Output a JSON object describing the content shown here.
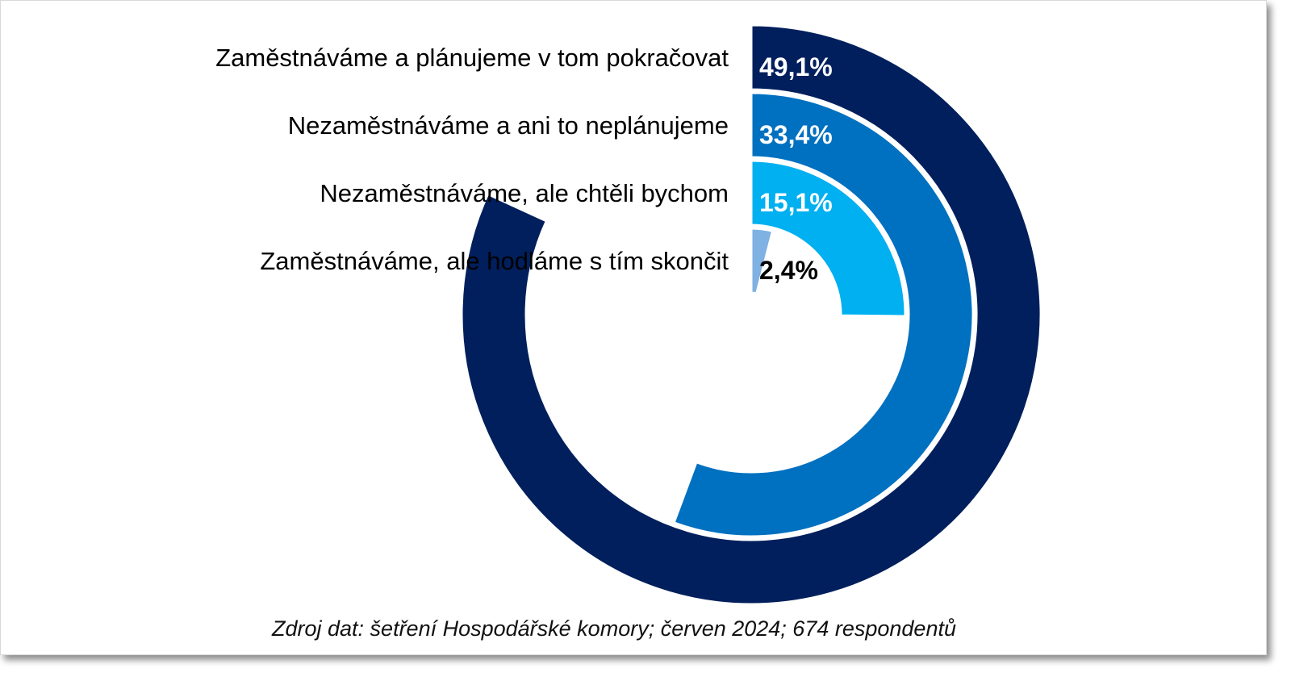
{
  "chart_data": {
    "type": "radial-bar",
    "title": "",
    "max_value": 60,
    "series": [
      {
        "label": "Zaměstnáváme a plánujeme v tom pokračovat",
        "value": 49.1,
        "value_label": "49,1%",
        "color": "#001f5c",
        "label_color": "#ffffff"
      },
      {
        "label": "Nezaměstnáváme a ani to neplánujeme",
        "value": 33.4,
        "value_label": "33,4%",
        "color": "#0070c0",
        "label_color": "#ffffff"
      },
      {
        "label": "Nezaměstnáváme, ale chtěli bychom",
        "value": 15.1,
        "value_label": "15,1%",
        "color": "#00b0f0",
        "label_color": "#ffffff"
      },
      {
        "label": "Zaměstnáváme, ale hodláme s tím skončit",
        "value": 2.4,
        "value_label": "2,4%",
        "color": "#7fb1e3",
        "label_color": "#000000"
      }
    ]
  },
  "source_note": "Zdroj dat: šetření Hospodářské komory; červen 2024; 674 respondentů"
}
